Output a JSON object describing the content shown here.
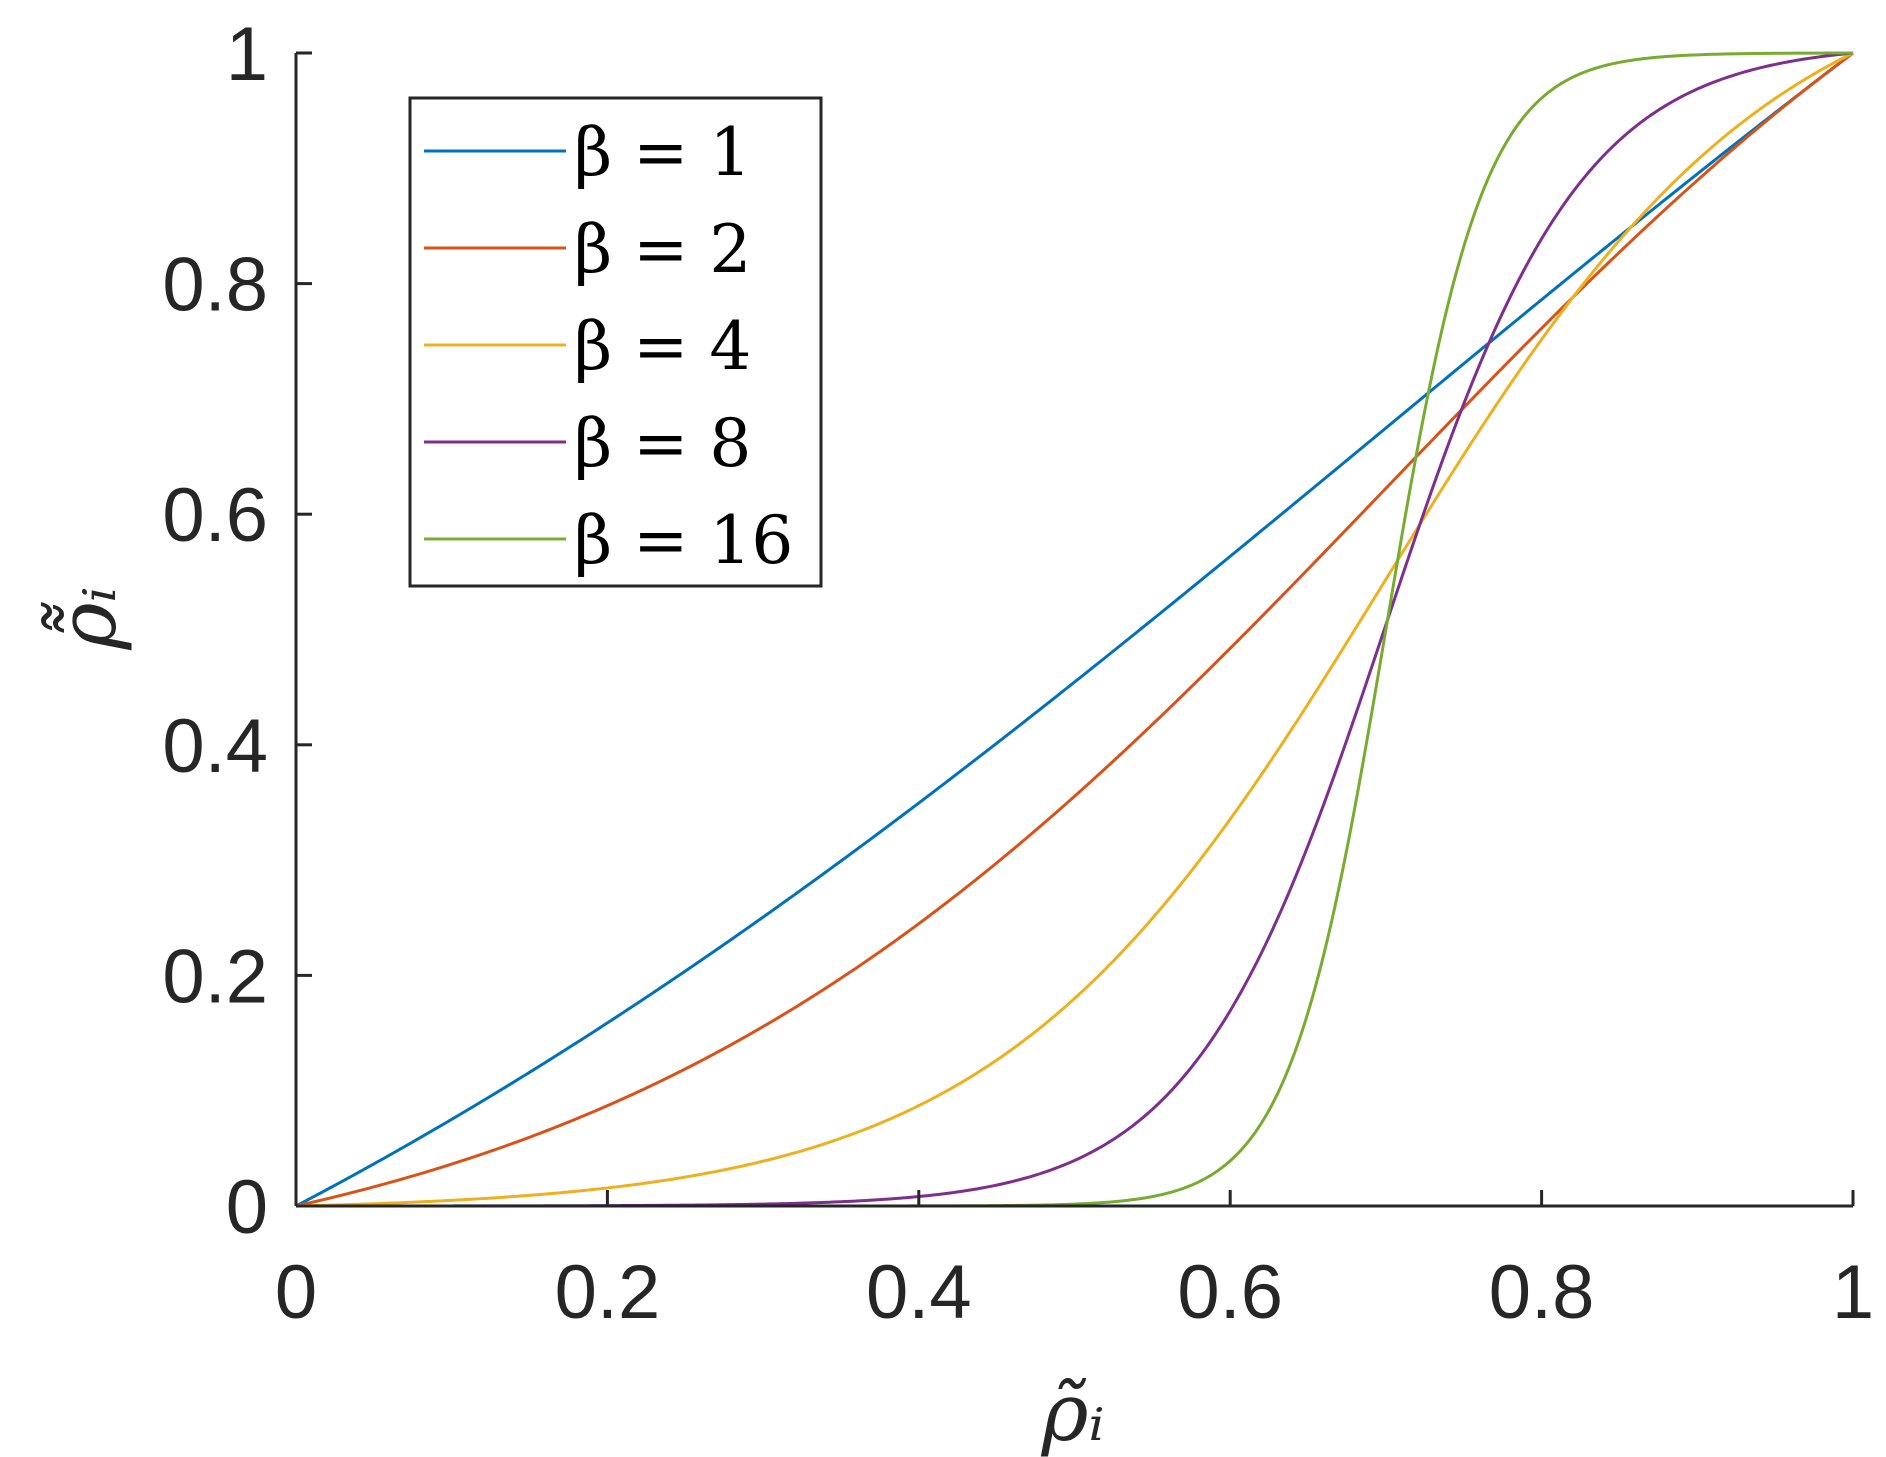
{
  "chart_data": {
    "type": "line",
    "xlabel": "ρ̃ᵢ",
    "ylabel": "ρ̃̃ᵢ",
    "xlim": [
      0,
      1
    ],
    "ylim": [
      0,
      1
    ],
    "x_ticks": [
      "0",
      "0.2",
      "0.4",
      "0.6",
      "0.8",
      "1"
    ],
    "y_ticks": [
      "0",
      "0.2",
      "0.4",
      "0.6",
      "0.8",
      "1"
    ],
    "grid": false,
    "legend_position": "top-left",
    "eta": 0.7,
    "x": [
      0,
      0.05,
      0.1,
      0.15,
      0.2,
      0.25,
      0.3,
      0.35,
      0.4,
      0.45,
      0.5,
      0.55,
      0.6,
      0.65,
      0.7,
      0.75,
      0.8,
      0.85,
      0.9,
      0.95,
      1
    ],
    "series": [
      {
        "name": "β = 1",
        "beta": 1,
        "color": "#0072BD",
        "values": [
          0,
          0.038,
          0.077,
          0.117,
          0.159,
          0.201,
          0.245,
          0.29,
          0.337,
          0.386,
          0.436,
          0.489,
          0.543,
          0.6,
          0.66,
          0.722,
          0.787,
          0.854,
          0.925,
          0.961,
          1
        ]
      },
      {
        "name": "β = 2",
        "beta": 2,
        "color": "#D95319",
        "values": [
          0,
          0.02,
          0.042,
          0.065,
          0.09,
          0.118,
          0.149,
          0.185,
          0.225,
          0.271,
          0.324,
          0.385,
          0.455,
          0.532,
          0.613,
          0.685,
          0.76,
          0.829,
          0.894,
          0.949,
          1
        ]
      },
      {
        "name": "β = 4",
        "beta": 4,
        "color": "#EDB120",
        "values": [
          0,
          0.003,
          0.006,
          0.01,
          0.015,
          0.022,
          0.031,
          0.044,
          0.063,
          0.09,
          0.129,
          0.19,
          0.281,
          0.396,
          0.5,
          0.604,
          0.72,
          0.82,
          0.9,
          0.96,
          1
        ]
      },
      {
        "name": "β = 8",
        "beta": 8,
        "color": "#7E2F8E",
        "values": [
          0,
          0,
          0,
          0,
          0,
          0.001,
          0.001,
          0.002,
          0.005,
          0.012,
          0.027,
          0.06,
          0.132,
          0.28,
          0.5,
          0.73,
          0.87,
          0.95,
          0.98,
          0.995,
          1
        ]
      },
      {
        "name": "β = 16",
        "beta": 16,
        "color": "#77AC30",
        "values": [
          0,
          0,
          0,
          0,
          0,
          0,
          0,
          0,
          0,
          0,
          0.001,
          0.005,
          0.025,
          0.14,
          0.5,
          0.88,
          0.98,
          0.995,
          0.999,
          1,
          1
        ]
      }
    ]
  }
}
